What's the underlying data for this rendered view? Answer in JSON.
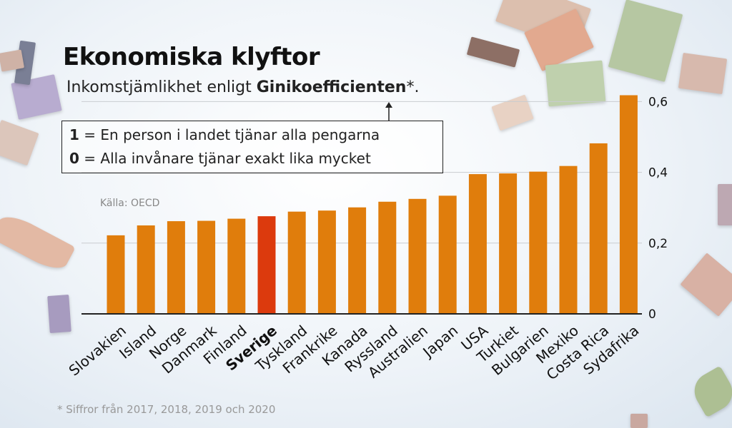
{
  "title": "Ekonomiska klyftor",
  "subtitle": {
    "prefix": "Inkomstjämlikhet enligt ",
    "emphasis": "Ginikoefficienten",
    "suffix": "*."
  },
  "legend": {
    "line1_key": "1",
    "line1_text": " = En person i landet tjänar alla pengarna",
    "line2_key": "0",
    "line2_text": " = Alla invånare tjänar exakt lika mycket"
  },
  "source": "Källa: OECD",
  "footnote": "* Siffror från 2017, 2018, 2019 och 2020",
  "colors": {
    "bar": "#e07d0c",
    "highlight": "#dc3a0d",
    "grid": "#c9ccd0",
    "baseline": "#222222",
    "axis_text": "#111111"
  },
  "chart_data": {
    "type": "bar",
    "title": "Ekonomiska klyftor",
    "subtitle": "Inkomstjämlikhet enligt Ginikoefficienten*.",
    "categories": [
      "Slovakien",
      "Island",
      "Norge",
      "Danmark",
      "Finland",
      "Sverige",
      "Tyskland",
      "Frankrike",
      "Kanada",
      "Ryssland",
      "Australien",
      "Japan",
      "USA",
      "Turkiet",
      "Bulgarien",
      "Mexiko",
      "Costa Rica",
      "Sydafrika"
    ],
    "values": [
      0.222,
      0.25,
      0.262,
      0.263,
      0.269,
      0.276,
      0.289,
      0.292,
      0.301,
      0.317,
      0.325,
      0.334,
      0.395,
      0.397,
      0.402,
      0.418,
      0.482,
      0.618
    ],
    "highlight": "Sverige",
    "ylim": [
      0,
      0.62
    ],
    "yticks": [
      0,
      0.2,
      0.4,
      0.6
    ],
    "ytick_labels": [
      "0",
      "0,2",
      "0,4",
      "0,6"
    ],
    "y_axis_side": "right",
    "grid": true,
    "xlabel": "",
    "ylabel": ""
  },
  "decor": {
    "bills": [
      {
        "kind": "sedel 50",
        "color": "#d9b7a0"
      },
      {
        "kind": "sedel 200",
        "color": "#b9c9a6"
      },
      {
        "kind": "sedel 20",
        "color": "#b7a9c9"
      },
      {
        "kind": "sedel 1000",
        "color": "#d8c2b5"
      },
      {
        "kind": "sedel 100",
        "color": "#cfa9a1"
      }
    ]
  }
}
